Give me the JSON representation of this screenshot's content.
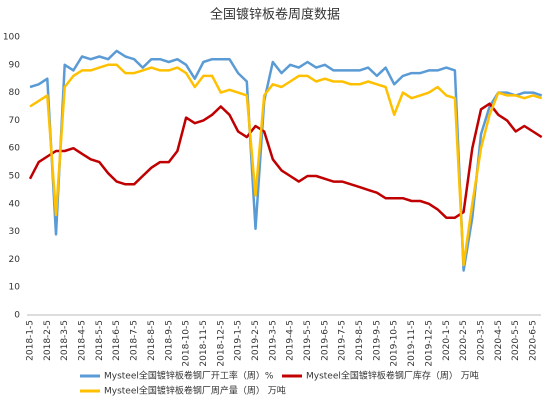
{
  "chart_data": {
    "type": "line",
    "title": "全国镀锌板卷周度数据",
    "categories": [
      "2018-1-5",
      null,
      "2018-2-5",
      null,
      "2018-3-5",
      null,
      "2018-4-5",
      null,
      "2018-5-5",
      null,
      "2018-6-5",
      null,
      "2018-7-5",
      null,
      "2018-8-5",
      null,
      "2018-9-5",
      null,
      "2018-10-5",
      null,
      "2018-11-5",
      null,
      "2018-12-5",
      null,
      "2019-1-5",
      null,
      "2019-2-5",
      null,
      "2019-3-5",
      null,
      "2019-4-5",
      null,
      "2019-5-5",
      null,
      "2019-6-5",
      null,
      "2019-7-5",
      null,
      "2019-8-5",
      null,
      "2019-9-5",
      null,
      "2019-10-5",
      null,
      "2019-11-5",
      null,
      "2019-12-5",
      null,
      "2020-1-5",
      null,
      "2020-2-5",
      null,
      "2020-3-5",
      null,
      "2020-4-5",
      null,
      "2020-5-5",
      null,
      "2020-6-5",
      null
    ],
    "series": [
      {
        "name": "Mysteel全国镀锌板卷钢厂开工率（周）%",
        "color": "#5b9bd5",
        "values": [
          82,
          83,
          85,
          29,
          90,
          88,
          93,
          92,
          93,
          92,
          95,
          93,
          92,
          89,
          92,
          92,
          91,
          92,
          90,
          85,
          91,
          92,
          92,
          92,
          87,
          84,
          31,
          77,
          91,
          87,
          90,
          89,
          91,
          89,
          90,
          88,
          88,
          88,
          88,
          89,
          86,
          89,
          83,
          86,
          87,
          87,
          88,
          88,
          89,
          88,
          16,
          35,
          65,
          75,
          80,
          80,
          79,
          80,
          80,
          79
        ]
      },
      {
        "name": "Mysteel全国镀锌板卷钢厂库存（周） 万吨",
        "color": "#c00000",
        "values": [
          49,
          55,
          57,
          59,
          59,
          60,
          58,
          56,
          55,
          51,
          48,
          47,
          47,
          50,
          53,
          55,
          55,
          59,
          71,
          69,
          70,
          72,
          75,
          72,
          66,
          64,
          68,
          66,
          56,
          52,
          50,
          48,
          50,
          50,
          49,
          48,
          48,
          47,
          46,
          45,
          44,
          42,
          42,
          42,
          41,
          41,
          40,
          38,
          35,
          35,
          37,
          60,
          74,
          76,
          72,
          70,
          66,
          68,
          66,
          64
        ]
      },
      {
        "name": "Mysteel全国镀锌板卷钢厂周产量（周） 万吨",
        "color": "#ffc000",
        "values": [
          75,
          77,
          79,
          36,
          82,
          86,
          88,
          88,
          89,
          90,
          90,
          87,
          87,
          88,
          89,
          88,
          88,
          89,
          87,
          82,
          86,
          86,
          80,
          81,
          80,
          79,
          43,
          79,
          83,
          82,
          84,
          86,
          86,
          84,
          85,
          84,
          84,
          83,
          83,
          84,
          83,
          82,
          72,
          80,
          78,
          79,
          80,
          82,
          79,
          78,
          18,
          40,
          60,
          72,
          80,
          79,
          79,
          78,
          79,
          78
        ]
      }
    ],
    "ylim": [
      0,
      100
    ],
    "yticks": [
      0,
      10,
      20,
      30,
      40,
      50,
      60,
      70,
      80,
      90,
      100
    ],
    "grid": false,
    "legend": "bottom"
  }
}
